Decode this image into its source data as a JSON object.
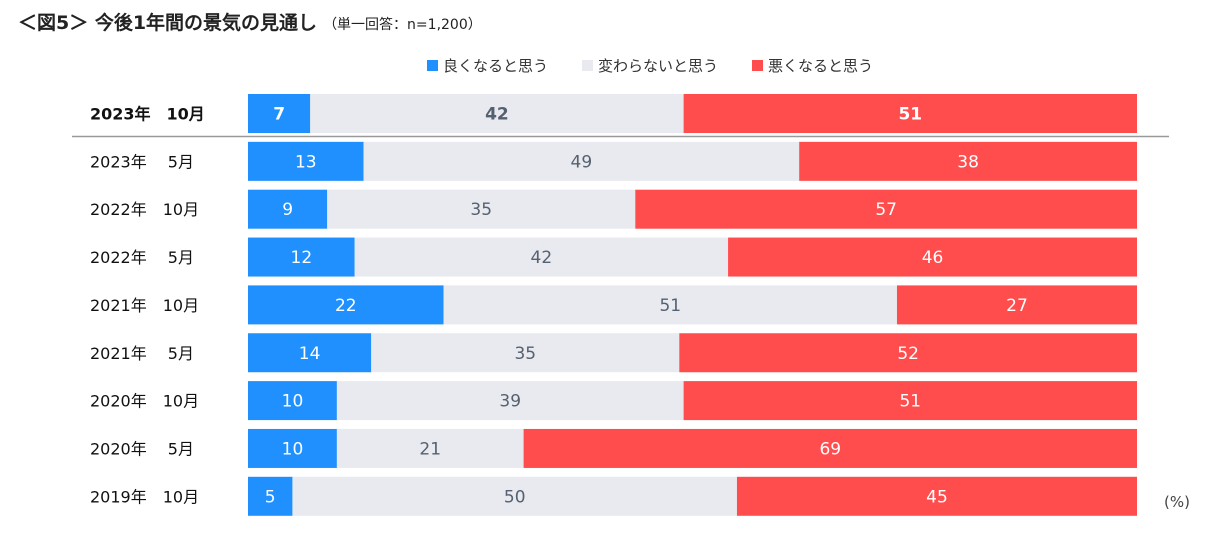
{
  "title": {
    "main": "＜図5＞ 今後1年間の景気の見通し",
    "sub": "（単一回答：n=1,200）"
  },
  "unit_label": "(%)",
  "colors": {
    "good": "#2090FF",
    "neutral": "#E8EAEF",
    "bad": "#FF4D4D",
    "label_light": "#ffffff",
    "label_dark": "#556070",
    "axis_line": "#999999"
  },
  "chart_data": {
    "type": "bar",
    "stacked": true,
    "orientation": "horizontal",
    "normalized": true,
    "title": "今後1年間の景気の見通し",
    "categories": [
      "2023年　10月",
      "2023年　 5月",
      "2022年　10月",
      "2022年　 5月",
      "2021年　10月",
      "2021年　 5月",
      "2020年　10月",
      "2020年　 5月",
      "2019年　10月"
    ],
    "series": [
      {
        "name": "良くなると思う",
        "values": [
          7,
          13,
          9,
          12,
          22,
          14,
          10,
          10,
          5
        ]
      },
      {
        "name": "変わらないと思う",
        "values": [
          42,
          49,
          35,
          42,
          51,
          35,
          39,
          21,
          50
        ]
      },
      {
        "name": "悪くなると思う",
        "values": [
          51,
          38,
          57,
          46,
          27,
          52,
          51,
          69,
          45
        ]
      }
    ],
    "highlight_category": "2023年　10月",
    "legend_position": "top",
    "xlabel": "",
    "ylabel": ""
  }
}
